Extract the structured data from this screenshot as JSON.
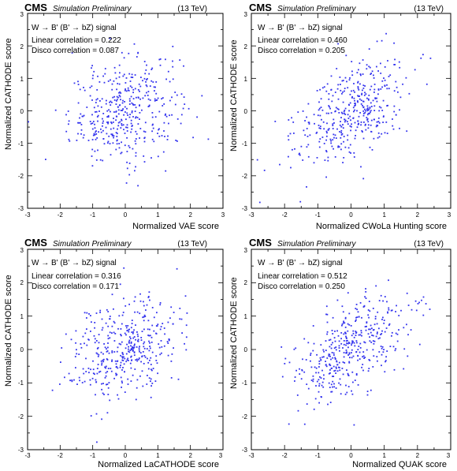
{
  "colors": {
    "points": "#3333ee",
    "axes": "#000000",
    "background": "#ffffff"
  },
  "chart_data": [
    {
      "type": "scatter",
      "header": {
        "experiment": "CMS",
        "status": "Simulation Preliminary",
        "energy": "(13 TeV)"
      },
      "legend": {
        "signal": "W → B' (B' → bZ) signal",
        "linear_corr": "Linear correlation = 0.222",
        "disco_corr": "Disco correlation = 0.087"
      },
      "xlabel": "Normalized VAE score",
      "ylabel": "Normalized CATHODE score",
      "xlim": [
        -3,
        3
      ],
      "ylim": [
        -3,
        3
      ],
      "xticks": [
        "-3",
        "-2",
        "-1",
        "0",
        "1",
        "2",
        "3"
      ],
      "yticks": [
        "-3",
        "-2",
        "-1",
        "0",
        "1",
        "2",
        "3"
      ],
      "grid": false,
      "series": [
        {
          "correlation": 0.222,
          "n_points": 420,
          "spread_x": 0.85,
          "spread_y": 0.8
        }
      ]
    },
    {
      "type": "scatter",
      "header": {
        "experiment": "CMS",
        "status": "Simulation Preliminary",
        "energy": "(13 TeV)"
      },
      "legend": {
        "signal": "W → B' (B' → bZ) signal",
        "linear_corr": "Linear correlation = 0.460",
        "disco_corr": "Disco correlation = 0.205"
      },
      "xlabel": "Normalized CWoLa Hunting score",
      "ylabel": "Normalized CATHODE score",
      "xlim": [
        -3,
        3
      ],
      "ylim": [
        -3,
        3
      ],
      "xticks": [
        "-3",
        "-2",
        "-1",
        "0",
        "1",
        "2",
        "3"
      ],
      "yticks": [
        "-3",
        "-2",
        "-1",
        "0",
        "1",
        "2",
        "3"
      ],
      "grid": false,
      "series": [
        {
          "correlation": 0.46,
          "n_points": 420,
          "spread_x": 0.85,
          "spread_y": 0.8
        }
      ]
    },
    {
      "type": "scatter",
      "header": {
        "experiment": "CMS",
        "status": "Simulation Preliminary",
        "energy": "(13 TeV)"
      },
      "legend": {
        "signal": "W → B' (B' → bZ) signal",
        "linear_corr": "Linear correlation = 0.316",
        "disco_corr": "Disco correlation = 0.171"
      },
      "xlabel": "Normalized LaCATHODE score",
      "ylabel": "Normalized CATHODE score",
      "xlim": [
        -3,
        3
      ],
      "ylim": [
        -3,
        3
      ],
      "xticks": [
        "-3",
        "-2",
        "-1",
        "0",
        "1",
        "2",
        "3"
      ],
      "yticks": [
        "-3",
        "-2",
        "-1",
        "0",
        "1",
        "2",
        "3"
      ],
      "grid": false,
      "series": [
        {
          "correlation": 0.316,
          "n_points": 420,
          "spread_x": 0.85,
          "spread_y": 0.8
        }
      ]
    },
    {
      "type": "scatter",
      "header": {
        "experiment": "CMS",
        "status": "Simulation Preliminary",
        "energy": "(13 TeV)"
      },
      "legend": {
        "signal": "W → B' (B' → bZ) signal",
        "linear_corr": "Linear correlation = 0.512",
        "disco_corr": "Disco correlation = 0.250"
      },
      "xlabel": "Normalized QUAK score",
      "ylabel": "Normalized CATHODE score",
      "xlim": [
        -3,
        3
      ],
      "ylim": [
        -3,
        3
      ],
      "xticks": [
        "-3",
        "-2",
        "-1",
        "0",
        "1",
        "2",
        "3"
      ],
      "yticks": [
        "-3",
        "-2",
        "-1",
        "0",
        "1",
        "2",
        "3"
      ],
      "grid": false,
      "series": [
        {
          "correlation": 0.512,
          "n_points": 420,
          "spread_x": 0.85,
          "spread_y": 0.8
        }
      ]
    }
  ]
}
